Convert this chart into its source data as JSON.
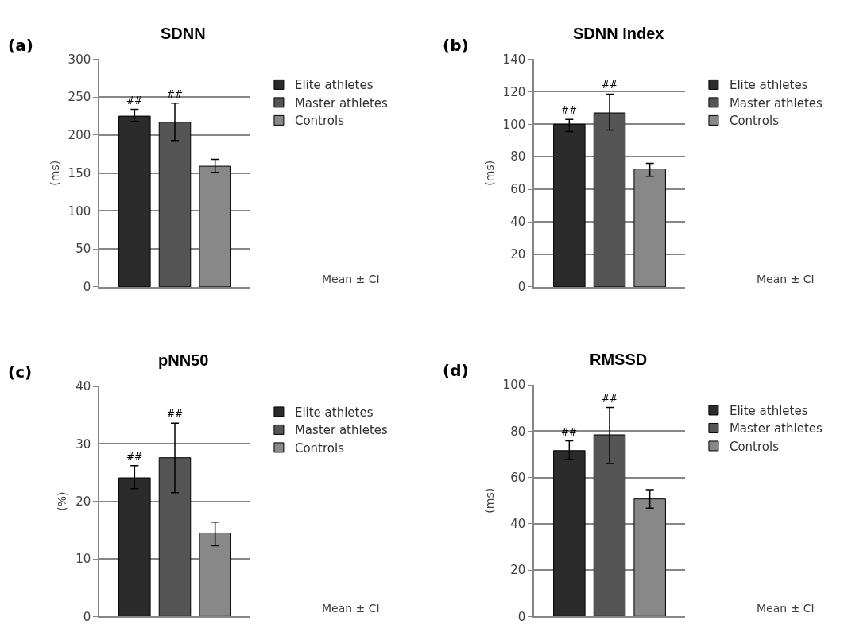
{
  "chart_data": [
    {
      "type": "bar",
      "title": "SDNN",
      "ylabel": "(ms)",
      "categories": [
        null
      ],
      "ylim": [
        0,
        300
      ],
      "yticks": [
        0,
        50,
        100,
        150,
        200,
        250,
        300
      ],
      "grid": "y",
      "legend": "right",
      "tick_labels": "y",
      "series": [
        {
          "name": "Elite athletes",
          "color": "#2b2b2b",
          "values": [
            225
          ],
          "errors": [
            [
              218,
              234
            ]
          ]
        },
        {
          "name": "Master athletes",
          "color": "#555555",
          "values": [
            217
          ],
          "errors": [
            [
              193,
              242
            ]
          ]
        },
        {
          "name": "Controls",
          "color": "#888888",
          "values": [
            159
          ],
          "errors": [
            [
              151,
              168
            ]
          ]
        }
      ],
      "annotations": [
        "(a)",
        "Mean ± CI",
        {
          "text": "##",
          "y": 234
        },
        {
          "text": "##",
          "y": 242
        }
      ]
    },
    {
      "type": "bar",
      "title": "SDNN Index",
      "ylabel": "(ms)",
      "categories": [
        null
      ],
      "ylim": [
        0,
        140
      ],
      "yticks": [
        0,
        20,
        40,
        60,
        80,
        100,
        120,
        140
      ],
      "grid": "y",
      "legend": "right",
      "tick_labels": "y",
      "series": [
        {
          "name": "Elite athletes",
          "color": "#2b2b2b",
          "values": [
            100
          ],
          "errors": [
            [
              95.5,
              103
            ]
          ]
        },
        {
          "name": "Master athletes",
          "color": "#555555",
          "values": [
            107
          ],
          "errors": [
            [
              96.5,
              118.5
            ]
          ]
        },
        {
          "name": "Controls",
          "color": "#888888",
          "values": [
            72.5
          ],
          "errors": [
            [
              68,
              76
            ]
          ]
        }
      ],
      "annotations": [
        "(b)",
        "Mean ± CI",
        {
          "text": "##",
          "y": 103
        },
        {
          "text": "##",
          "y": 118.5
        }
      ]
    },
    {
      "type": "bar",
      "title": "pNN50",
      "ylabel": "(%)",
      "categories": [
        null
      ],
      "ylim": [
        0,
        40
      ],
      "yticks": [
        0,
        10,
        20,
        30,
        40
      ],
      "grid": "y",
      "legend": "right",
      "tick_labels": "y",
      "series": [
        {
          "name": "Elite athletes",
          "color": "#2b2b2b",
          "values": [
            24.1
          ],
          "errors": [
            [
              22.2,
              26.2
            ]
          ]
        },
        {
          "name": "Master athletes",
          "color": "#555555",
          "values": [
            27.6
          ],
          "errors": [
            [
              21.5,
              33.6
            ]
          ]
        },
        {
          "name": "Controls",
          "color": "#888888",
          "values": [
            14.5
          ],
          "errors": [
            [
              12.3,
              16.4
            ]
          ]
        }
      ],
      "annotations": [
        "(c)",
        "Mean ± CI",
        {
          "text": "##",
          "y": 26.2
        },
        {
          "text": "##",
          "y": 33.6
        }
      ]
    },
    {
      "type": "bar",
      "title": "RMSSD",
      "ylabel": "(ms)",
      "categories": [
        null
      ],
      "ylim": [
        0,
        100
      ],
      "yticks": [
        0,
        20,
        40,
        60,
        80,
        100
      ],
      "grid": "y",
      "legend": "right",
      "tick_labels": "y",
      "series": [
        {
          "name": "Elite athletes",
          "color": "#2b2b2b",
          "values": [
            71.6
          ],
          "errors": [
            [
              67.8,
              75.8
            ]
          ]
        },
        {
          "name": "Master athletes",
          "color": "#555555",
          "values": [
            78.4
          ],
          "errors": [
            [
              66,
              90.2
            ]
          ]
        },
        {
          "name": "Controls",
          "color": "#888888",
          "values": [
            50.7
          ],
          "errors": [
            [
              46.7,
              54.7
            ]
          ]
        }
      ],
      "annotations": [
        "(d)",
        "Mean ± CI",
        {
          "text": "##",
          "y": 75.8
        },
        {
          "text": "##",
          "y": 90.2
        }
      ]
    }
  ]
}
